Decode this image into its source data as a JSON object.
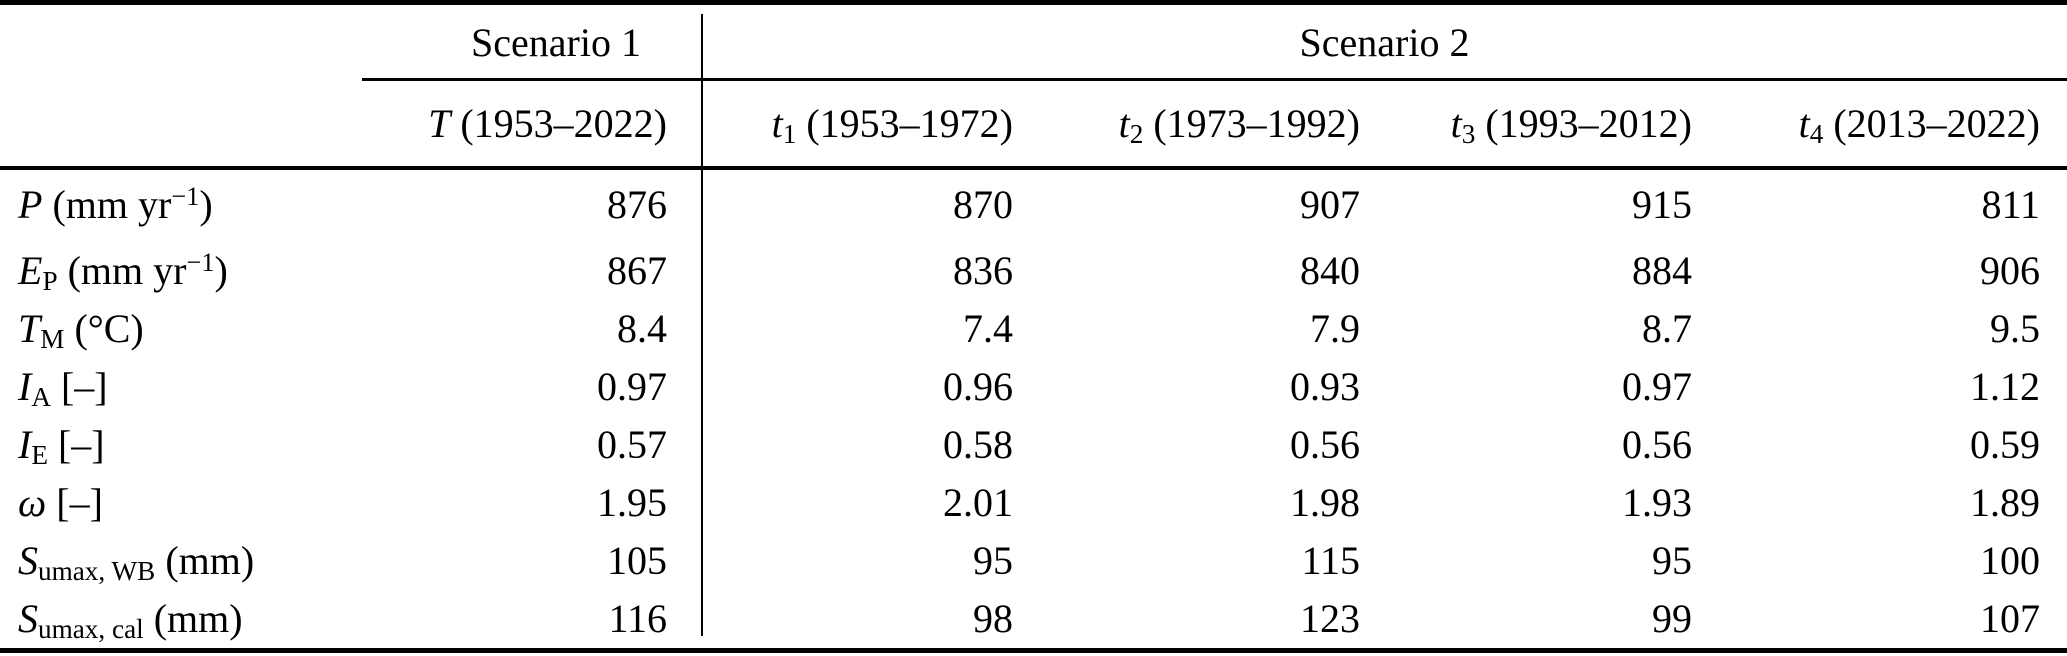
{
  "colors": {
    "text": "#000000",
    "background": "#ffffff",
    "rules": "#000000"
  },
  "table": {
    "scenario1_label": "Scenario 1",
    "scenario2_label": "Scenario 2",
    "columns": [
      {
        "sym": "T",
        "sub": "",
        "range": "(1953–2022)"
      },
      {
        "sym": "t",
        "sub": "1",
        "range": "(1953–1972)"
      },
      {
        "sym": "t",
        "sub": "2",
        "range": "(1973–1992)"
      },
      {
        "sym": "t",
        "sub": "3",
        "range": "(1993–2012)"
      },
      {
        "sym": "t",
        "sub": "4",
        "range": "(2013–2022)"
      }
    ],
    "rows": [
      {
        "sym": "P",
        "sub": "",
        "unit": "(mm yr",
        "unit_sup": "−1",
        "unit_end": ")",
        "values": [
          "876",
          "870",
          "907",
          "915",
          "811"
        ]
      },
      {
        "sym": "E",
        "sub": "P",
        "unit": "(mm yr",
        "unit_sup": "−1",
        "unit_end": ")",
        "values": [
          "867",
          "836",
          "840",
          "884",
          "906"
        ]
      },
      {
        "sym": "T",
        "sub": "M",
        "unit": "(°C)",
        "unit_sup": "",
        "unit_end": "",
        "values": [
          "8.4",
          "7.4",
          "7.9",
          "8.7",
          "9.5"
        ]
      },
      {
        "sym": "I",
        "sub": "A",
        "unit": "[–]",
        "unit_sup": "",
        "unit_end": "",
        "values": [
          "0.97",
          "0.96",
          "0.93",
          "0.97",
          "1.12"
        ]
      },
      {
        "sym": "I",
        "sub": "E",
        "unit": "[–]",
        "unit_sup": "",
        "unit_end": "",
        "values": [
          "0.57",
          "0.58",
          "0.56",
          "0.56",
          "0.59"
        ]
      },
      {
        "sym": "ω",
        "sub": "",
        "unit": "[–]",
        "unit_sup": "",
        "unit_end": "",
        "values": [
          "1.95",
          "2.01",
          "1.98",
          "1.93",
          "1.89"
        ]
      },
      {
        "sym": "S",
        "sub": "umax, WB",
        "unit": "(mm)",
        "unit_sup": "",
        "unit_end": "",
        "values": [
          "105",
          "95",
          "115",
          "95",
          "100"
        ]
      },
      {
        "sym": "S",
        "sub": "umax, cal",
        "unit": "(mm)",
        "unit_sup": "",
        "unit_end": "",
        "values": [
          "116",
          "98",
          "123",
          "99",
          "107"
        ]
      }
    ]
  }
}
